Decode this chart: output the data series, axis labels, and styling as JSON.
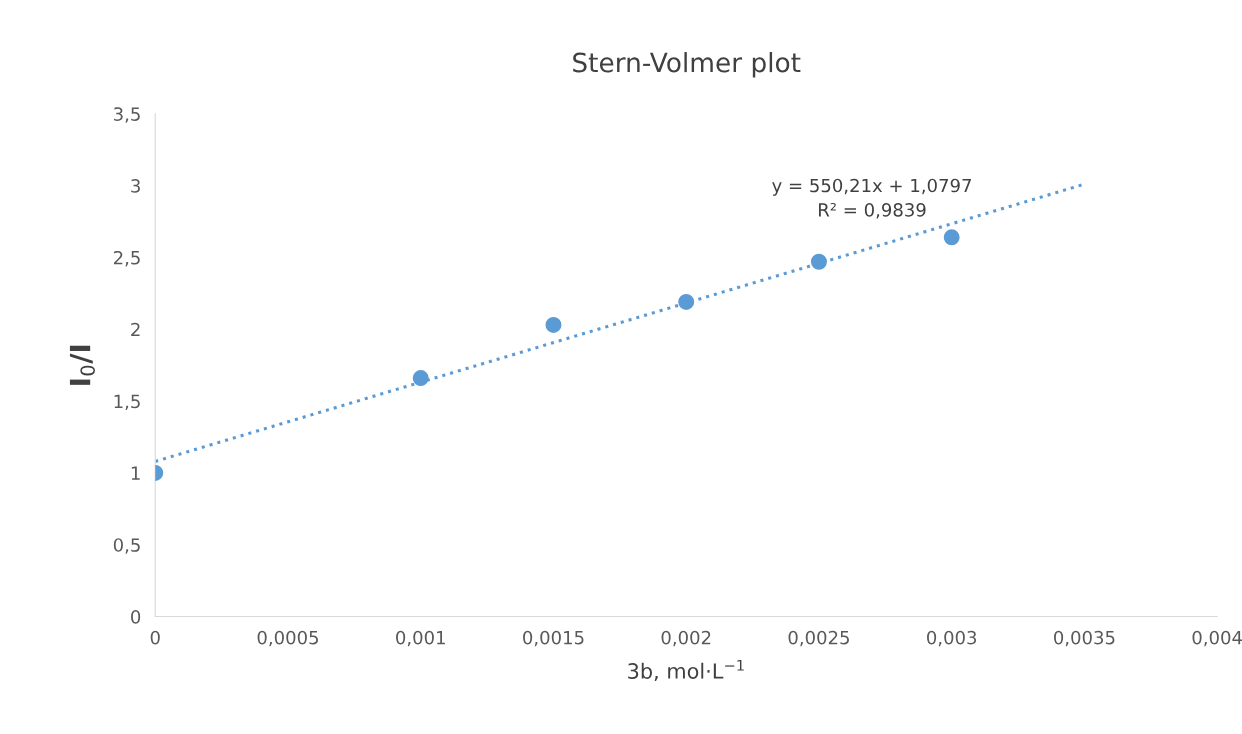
{
  "chart_data": {
    "type": "scatter",
    "title": "Stern-Volmer plot",
    "xlabel": "3b, mol·L$^{−1}$",
    "ylabel": "I$_{0}$/I",
    "series": [
      {
        "color": "#5b9bd5",
        "marker": "circle",
        "x": [
          0,
          0.001,
          0.0015,
          0.002,
          0.0025,
          0.003
        ],
        "values": [
          1.0,
          1.66,
          2.03,
          2.19,
          2.47,
          2.64
        ]
      },
      {
        "type": "line",
        "color": "#5b9bd5",
        "marker": "none",
        "line_style": "dotted",
        "x": [
          0,
          0.0035
        ],
        "values": [
          1.08,
          3.01
        ]
      }
    ],
    "annotations": [
      "y = 550,21x + 1,0797\nR² = 0,9839"
    ],
    "xlim": [
      0,
      0.004
    ],
    "ylim": [
      0,
      3.5
    ],
    "xticks": [
      0,
      {
        "value": 0.0005,
        "label": "0,0005"
      },
      {
        "value": 0.001,
        "label": "0,001"
      },
      {
        "value": 0.0015,
        "label": "0,0015"
      },
      {
        "value": 0.002,
        "label": "0,002"
      },
      {
        "value": 0.0025,
        "label": "0,0025"
      },
      {
        "value": 0.003,
        "label": "0,003"
      },
      {
        "value": 0.0035,
        "label": "0,0035"
      },
      {
        "value": 0.004,
        "label": "0,004"
      }
    ],
    "yticks": [
      0,
      {
        "value": 0.5,
        "label": "0,5"
      },
      1,
      {
        "value": 1.5,
        "label": "1,5"
      },
      2,
      {
        "value": 2.5,
        "label": "2,5"
      },
      3,
      {
        "value": 3.5,
        "label": "3,5"
      }
    ],
    "grid": false,
    "legend": false
  }
}
